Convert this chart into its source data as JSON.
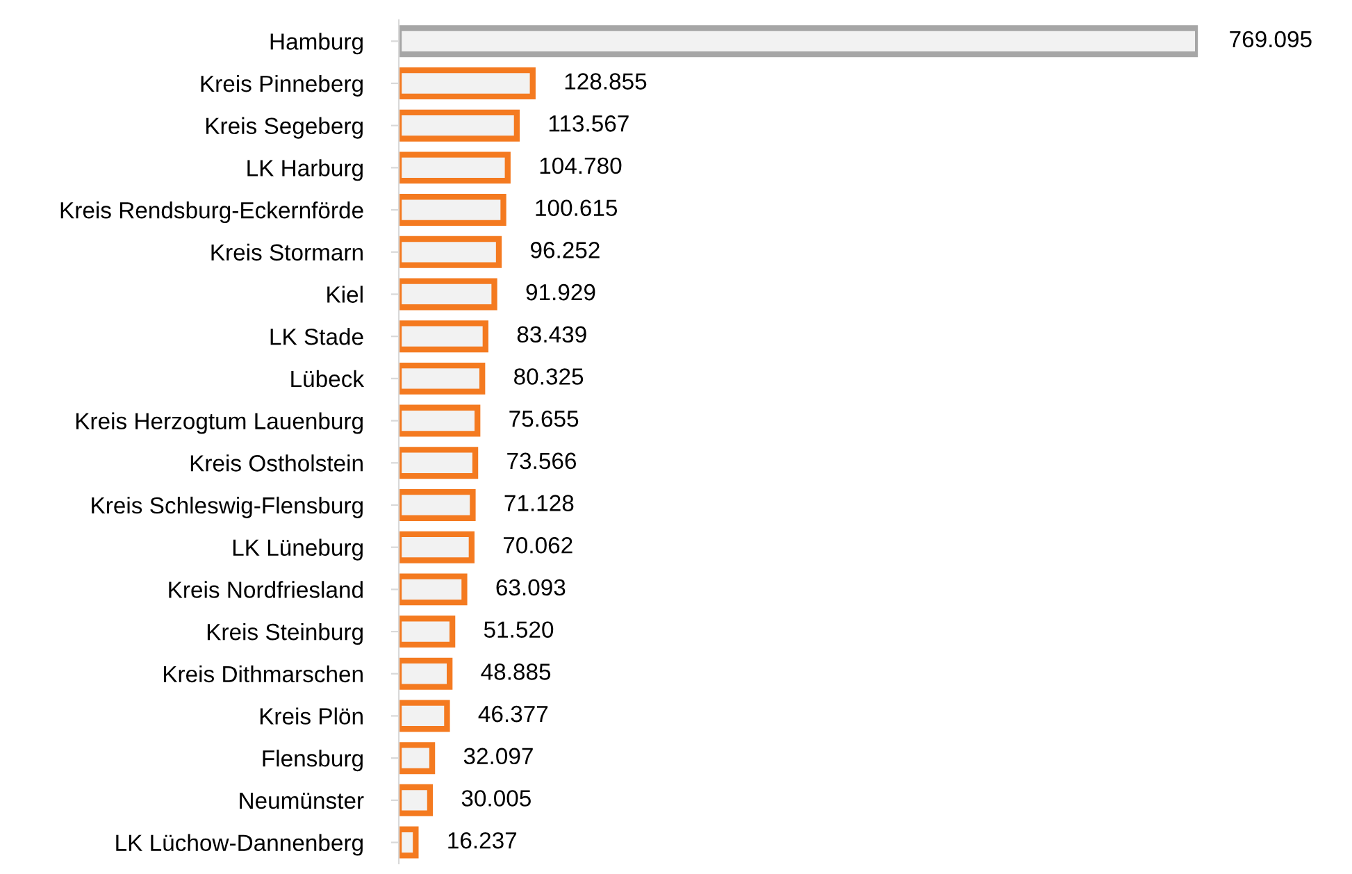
{
  "chart_data": {
    "type": "bar",
    "orientation": "horizontal",
    "categories": [
      "Hamburg",
      "Kreis Pinneberg",
      "Kreis Segeberg",
      "LK Harburg",
      "Kreis Rendsburg-Eckernförde",
      "Kreis Stormarn",
      "Kiel",
      "LK Stade",
      "Lübeck",
      "Kreis Herzogtum Lauenburg",
      "Kreis Ostholstein",
      "Kreis Schleswig-Flensburg",
      "LK Lüneburg",
      "Kreis Nordfriesland",
      "Kreis Steinburg",
      "Kreis Dithmarschen",
      "Kreis Plön",
      "Flensburg",
      "Neumünster",
      "LK Lüchow-Dannenberg"
    ],
    "values": [
      769095,
      128855,
      113567,
      104780,
      100615,
      96252,
      91929,
      83439,
      80325,
      75655,
      73566,
      71128,
      70062,
      63093,
      51520,
      48885,
      46377,
      32097,
      30005,
      16237
    ],
    "value_labels": [
      "769.095",
      "128.855",
      "113.567",
      "104.780",
      "100.615",
      "96.252",
      "91.929",
      "83.439",
      "80.325",
      "75.655",
      "73.566",
      "71.128",
      "70.062",
      "63.093",
      "51.520",
      "48.885",
      "46.377",
      "32.097",
      "30.005",
      "16.237"
    ],
    "colors": [
      "#a6a6a6",
      "#f47a20",
      "#f47a20",
      "#f47a20",
      "#f47a20",
      "#f47a20",
      "#f47a20",
      "#f47a20",
      "#f47a20",
      "#f47a20",
      "#f47a20",
      "#f47a20",
      "#f47a20",
      "#f47a20",
      "#f47a20",
      "#f47a20",
      "#f47a20",
      "#f47a20",
      "#f47a20",
      "#f47a20"
    ],
    "grid": false,
    "legend": false
  }
}
